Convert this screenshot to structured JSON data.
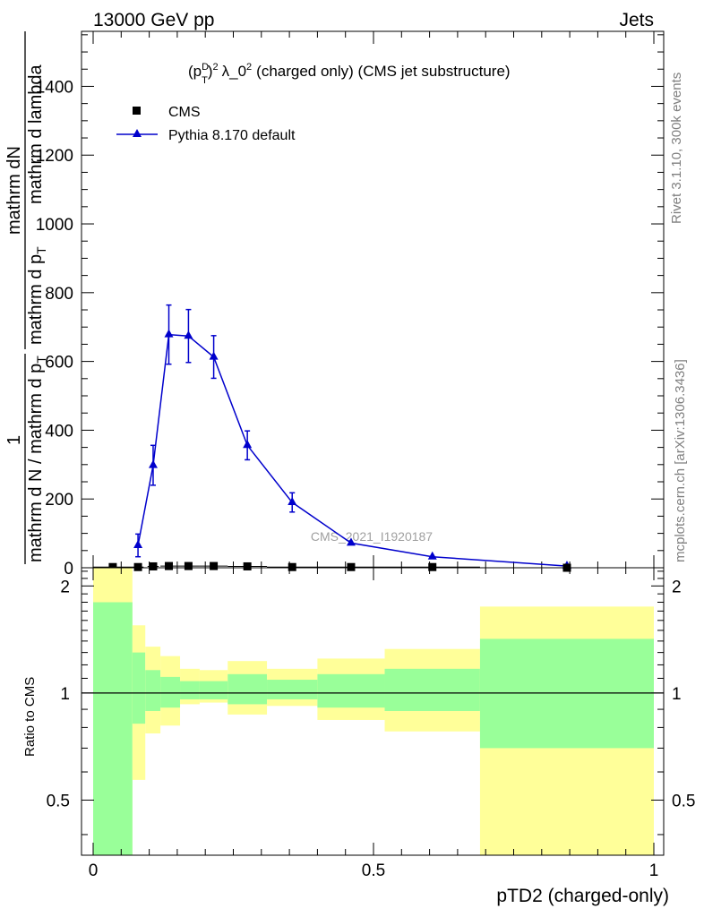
{
  "header": {
    "left_label": "13000 GeV pp",
    "right_label": "Jets",
    "side_label_rivet": "Rivet 3.1.10,  300k events",
    "side_label_mcplots": "mcplots.cern.ch [arXiv:1306.3436]"
  },
  "chart_data": [
    {
      "type": "line",
      "title_prefix": "(p",
      "title_sup_D": "D",
      "title_sub_T": "T",
      "title_sup_2": "2",
      "title_mid": "λ_0",
      "title_sup_2b": "2",
      "title_suffix": "(charged only) (CMS jet substructure)",
      "watermark": "CMS_2021_I1920187",
      "ylabel_top": "mathrm dN",
      "ylabel_top2": "mathrm d p",
      "ylabel_top2_sub": "T",
      "ylabel_top3": "mathrm d lambda",
      "ylabel_num": "1",
      "ylabel_den": "mathrm d N / mathrm d p",
      "ylabel_den_sub": "T",
      "xlim": [
        0,
        1
      ],
      "ylim": [
        0,
        1560
      ],
      "yticks": [
        0,
        200,
        400,
        600,
        800,
        1000,
        1200,
        1400
      ],
      "ytick_labels": [
        "0",
        "200",
        "400",
        "600",
        "800",
        "1000",
        "1200",
        "1400"
      ],
      "legend": [
        {
          "label": "CMS",
          "marker": "square",
          "color": "#000000"
        },
        {
          "label": "Pythia 8.170 default",
          "marker": "triangle",
          "color": "#0000cc"
        }
      ],
      "legend_position": "top-left",
      "series": [
        {
          "name": "CMS",
          "color": "#000000",
          "x": [
            0.035,
            0.08,
            0.107,
            0.135,
            0.17,
            0.215,
            0.275,
            0.355,
            0.46,
            0.605,
            0.845
          ],
          "y": [
            2,
            2,
            4,
            5,
            5,
            5,
            4,
            2,
            2,
            2,
            0
          ],
          "xerr": [
            0.035,
            0.01,
            0.01,
            0.015,
            0.02,
            0.025,
            0.035,
            0.045,
            0.06,
            0.085,
            0.155
          ]
        },
        {
          "name": "Pythia 8.170 default",
          "color": "#0000cc",
          "x": [
            0.08,
            0.107,
            0.135,
            0.17,
            0.215,
            0.275,
            0.355,
            0.46,
            0.605,
            0.845
          ],
          "y": [
            65,
            298,
            678,
            674,
            613,
            356,
            190,
            72,
            32,
            5
          ],
          "yerr": [
            33,
            58,
            86,
            77,
            62,
            42,
            28,
            0,
            0,
            0
          ]
        }
      ]
    },
    {
      "type": "area",
      "ylabel": "Ratio to CMS",
      "xlabel": "pTD2 (charged-only)",
      "xlim": [
        0,
        1
      ],
      "ylim": [
        0.35,
        2.25
      ],
      "yticks": [
        0.5,
        1,
        2
      ],
      "ytick_labels": [
        "0.5",
        "1",
        "2"
      ],
      "xticks": [
        0,
        0.5,
        1
      ],
      "xtick_labels": [
        "0",
        "0.5",
        "1"
      ],
      "reference_line": 1,
      "bands": [
        {
          "x0": 0.0,
          "x1": 0.07,
          "yellow": [
            0.35,
            2.25
          ],
          "green": [
            0.35,
            1.8
          ]
        },
        {
          "x0": 0.07,
          "x1": 0.093,
          "yellow": [
            0.57,
            1.55
          ],
          "green": [
            0.82,
            1.3
          ]
        },
        {
          "x0": 0.093,
          "x1": 0.12,
          "yellow": [
            0.77,
            1.35
          ],
          "green": [
            0.89,
            1.16
          ]
        },
        {
          "x0": 0.12,
          "x1": 0.155,
          "yellow": [
            0.81,
            1.27
          ],
          "green": [
            0.91,
            1.11
          ]
        },
        {
          "x0": 0.155,
          "x1": 0.19,
          "yellow": [
            0.93,
            1.17
          ],
          "green": [
            0.96,
            1.08
          ]
        },
        {
          "x0": 0.19,
          "x1": 0.24,
          "yellow": [
            0.94,
            1.16
          ],
          "green": [
            0.96,
            1.08
          ]
        },
        {
          "x0": 0.24,
          "x1": 0.31,
          "yellow": [
            0.87,
            1.23
          ],
          "green": [
            0.93,
            1.13
          ]
        },
        {
          "x0": 0.31,
          "x1": 0.4,
          "yellow": [
            0.92,
            1.17
          ],
          "green": [
            0.96,
            1.09
          ]
        },
        {
          "x0": 0.4,
          "x1": 0.52,
          "yellow": [
            0.84,
            1.25
          ],
          "green": [
            0.91,
            1.13
          ]
        },
        {
          "x0": 0.52,
          "x1": 0.69,
          "yellow": [
            0.78,
            1.33
          ],
          "green": [
            0.89,
            1.17
          ]
        },
        {
          "x0": 0.69,
          "x1": 1.0,
          "yellow": [
            0.35,
            1.75
          ],
          "green": [
            0.7,
            1.42
          ]
        }
      ]
    }
  ]
}
